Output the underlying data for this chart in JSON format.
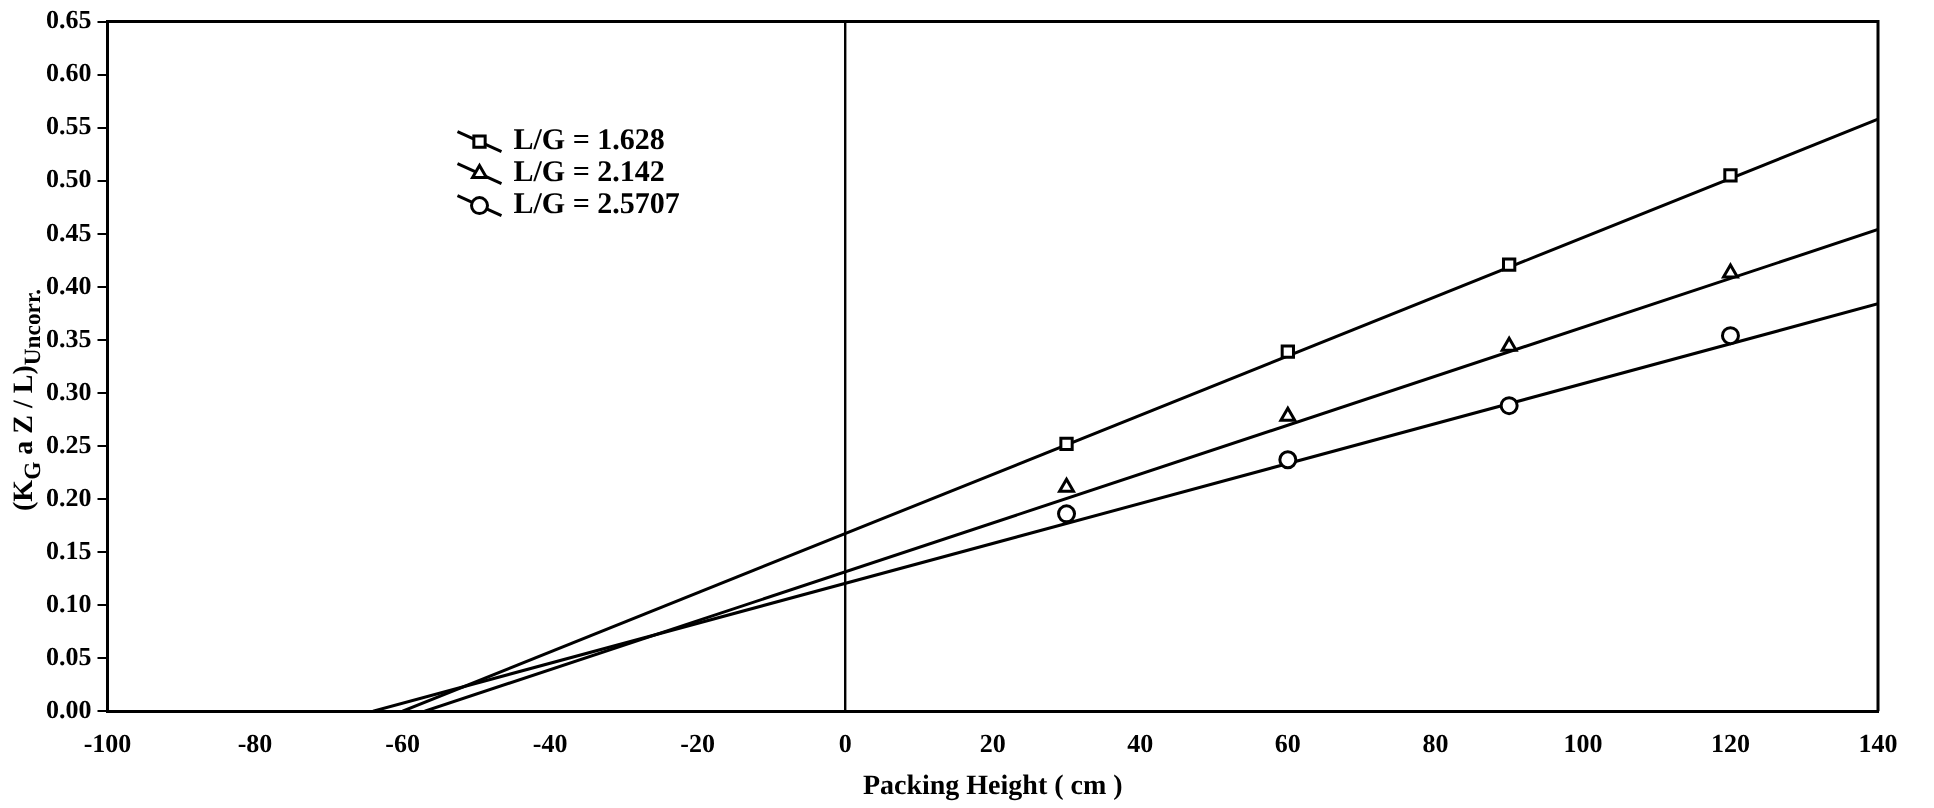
{
  "chart_data": {
    "type": "scatter",
    "xlabel": "Packing Height ( cm )",
    "ylabel": "(K$_{G}$ a Z / L)$_{Uncorr.}$",
    "xlim": [
      -100,
      140
    ],
    "xticks": [
      -100,
      -80,
      -60,
      -40,
      -20,
      0,
      20,
      40,
      60,
      80,
      100,
      120,
      140
    ],
    "ylim": [
      0,
      0.65
    ],
    "yticks": [
      {
        "value": 0,
        "label": "0.00"
      },
      {
        "value": 0.05,
        "label": "0.05"
      },
      {
        "value": 0.1,
        "label": "0.10"
      },
      {
        "value": 0.15,
        "label": "0.15"
      },
      {
        "value": 0.2,
        "label": "0.20"
      },
      {
        "value": 0.25,
        "label": "0.25"
      },
      {
        "value": 0.3,
        "label": "0.30"
      },
      {
        "value": 0.35,
        "label": "0.35"
      },
      {
        "value": 0.4,
        "label": "0.40"
      },
      {
        "value": 0.45,
        "label": "0.45"
      },
      {
        "value": 0.5,
        "label": "0.50"
      },
      {
        "value": 0.55,
        "label": "0.55"
      },
      {
        "value": 0.6,
        "label": "0.60"
      },
      {
        "value": 0.65,
        "label": "0.65"
      }
    ],
    "grid": false,
    "legend": "top left",
    "ref_lines": [
      {
        "axis": "x",
        "value": 0,
        "color": "#000000"
      }
    ],
    "series": [
      {
        "name": "L/G = 1.628",
        "marker": "square",
        "color": "#000000",
        "x": [
          30,
          60,
          90,
          120
        ],
        "values": [
          0.252,
          0.339,
          0.421,
          0.505
        ]
      },
      {
        "name": "L/G = 2.142",
        "marker": "triangle",
        "color": "#000000",
        "x": [
          30,
          60,
          90,
          120
        ],
        "values": [
          0.211,
          0.278,
          0.344,
          0.413
        ]
      },
      {
        "name": "L/G = 2.5707",
        "marker": "circle",
        "color": "#000000",
        "x": [
          30,
          60,
          90,
          120
        ],
        "values": [
          0.186,
          0.237,
          0.288,
          0.354
        ]
      },
      {
        "type": "line",
        "color": "#000000",
        "x": [
          -60,
          140
        ],
        "values": [
          0,
          0.558
        ]
      },
      {
        "type": "line",
        "color": "#000000",
        "x": [
          -57,
          140
        ],
        "values": [
          0,
          0.454
        ]
      },
      {
        "type": "line",
        "color": "#000000",
        "x": [
          -64,
          140
        ],
        "values": [
          0,
          0.384
        ]
      }
    ]
  }
}
